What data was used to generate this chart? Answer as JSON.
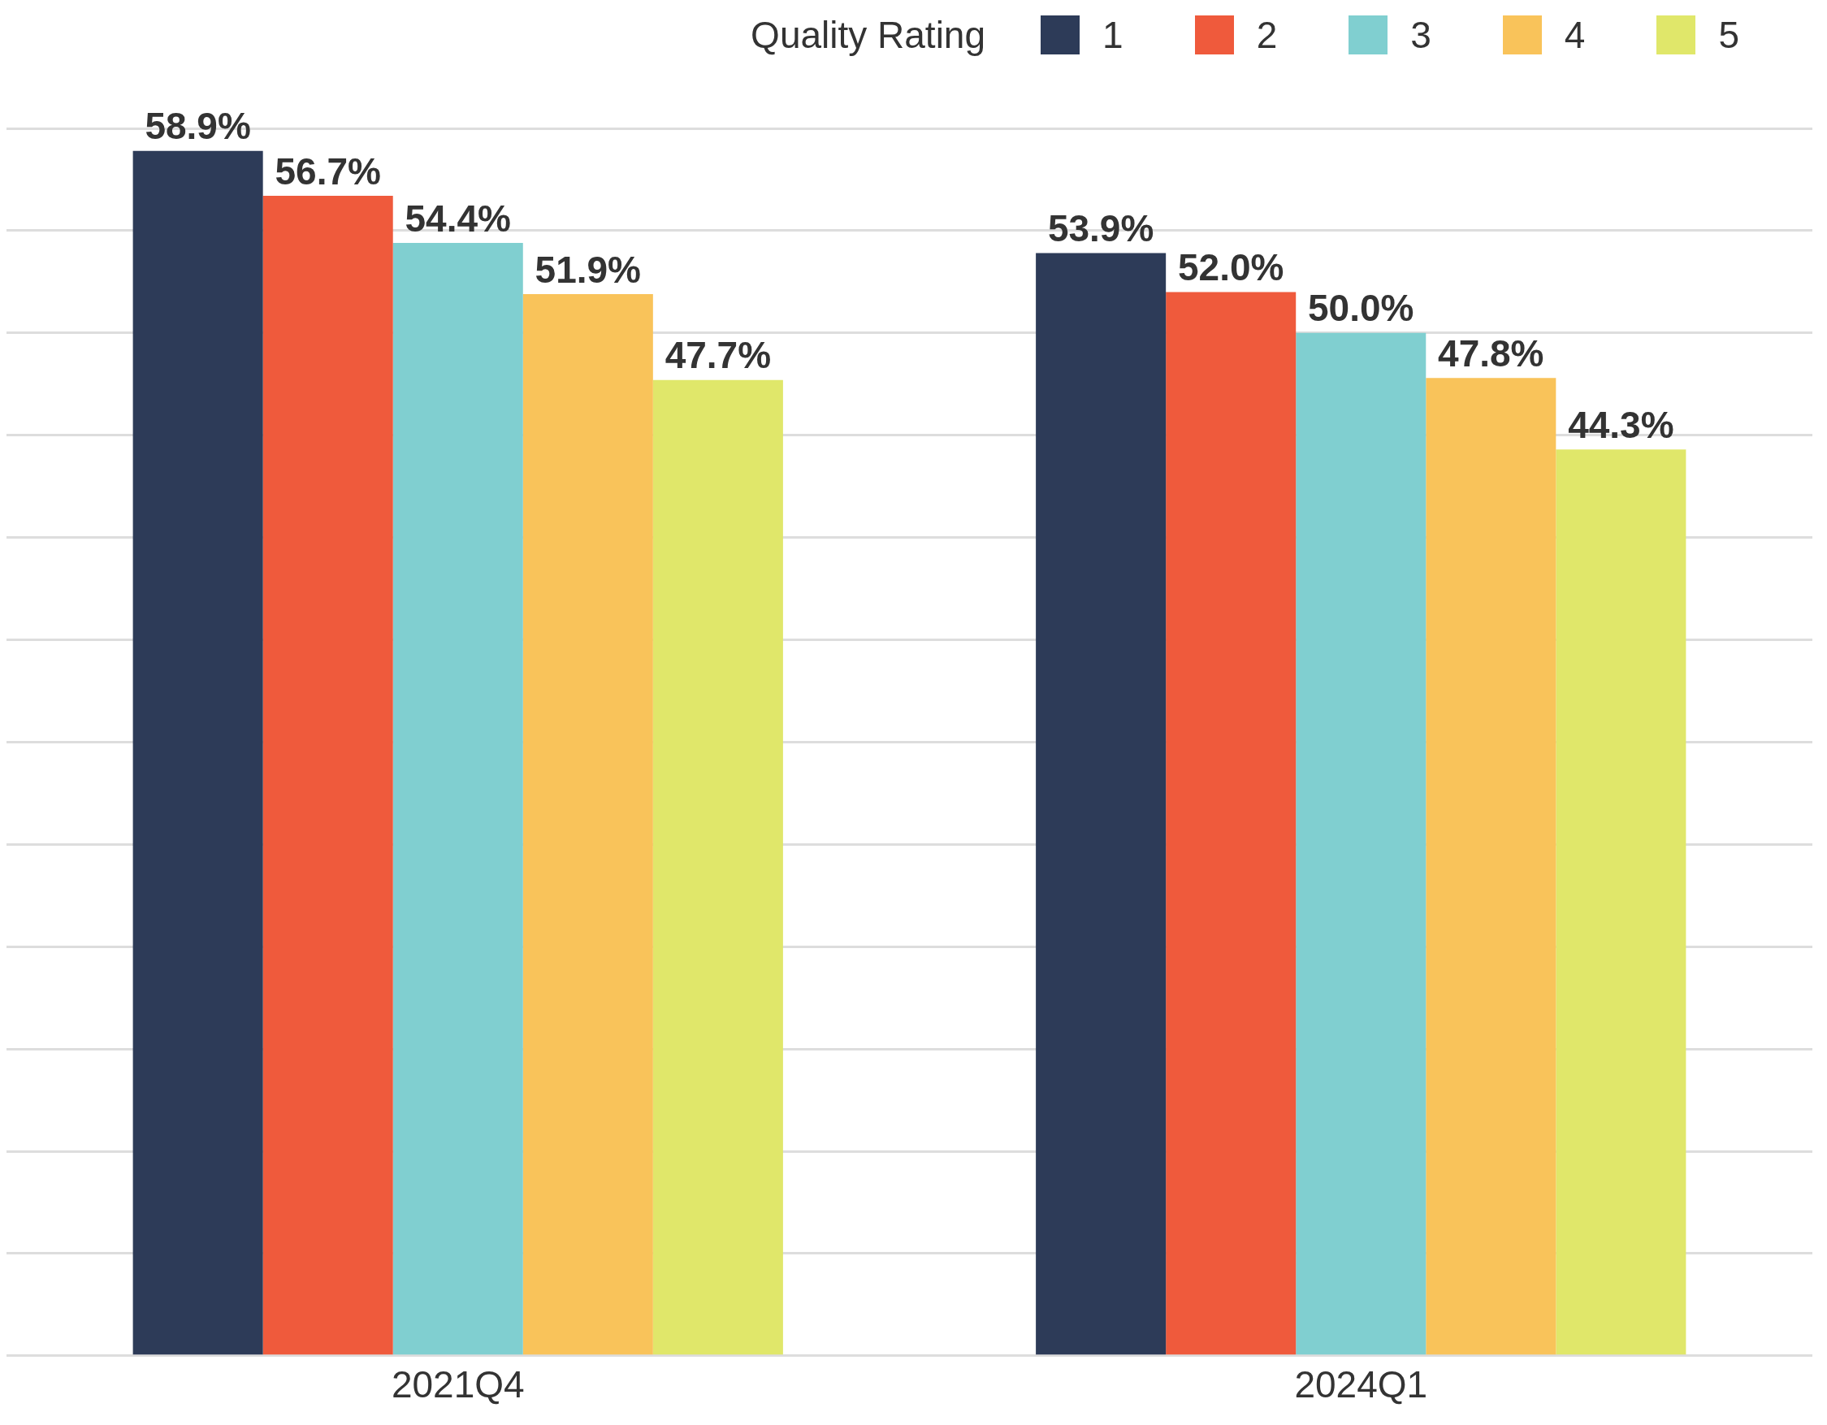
{
  "chart_data": {
    "type": "bar",
    "legend_title": "Quality Rating",
    "legend": "top right",
    "categories": [
      "2021Q4",
      "2024Q1"
    ],
    "series": [
      {
        "name": "1",
        "color": "#2d3b58",
        "values": [
          58.9,
          53.9
        ],
        "value_labels": [
          "58.9%",
          "53.9%"
        ]
      },
      {
        "name": "2",
        "color": "#ef5a3c",
        "values": [
          56.7,
          52.0
        ],
        "value_labels": [
          "56.7%",
          "52.0%"
        ]
      },
      {
        "name": "3",
        "color": "#80cfd0",
        "values": [
          54.4,
          50.0
        ],
        "value_labels": [
          "54.4%",
          "50.0%"
        ]
      },
      {
        "name": "4",
        "color": "#f9c35a",
        "values": [
          51.9,
          47.8
        ],
        "value_labels": [
          "51.9%",
          "47.8%"
        ]
      },
      {
        "name": "5",
        "color": "#e0e76a",
        "values": [
          47.7,
          44.3
        ],
        "value_labels": [
          "47.7%",
          "44.3%"
        ]
      }
    ],
    "ylim": [
      0,
      60
    ],
    "yticks": [
      {
        "value": 0,
        "label": null
      },
      {
        "value": 5,
        "label": null
      },
      {
        "value": 10,
        "label": null
      },
      {
        "value": 15,
        "label": null
      },
      {
        "value": 20,
        "label": null
      },
      {
        "value": 25,
        "label": null
      },
      {
        "value": 30,
        "label": null
      },
      {
        "value": 35,
        "label": null
      },
      {
        "value": 40,
        "label": null
      },
      {
        "value": 45,
        "label": null
      },
      {
        "value": 50,
        "label": null
      },
      {
        "value": 55,
        "label": null
      },
      {
        "value": 60,
        "label": null
      }
    ],
    "grid": "y",
    "tick_labels": "x"
  }
}
